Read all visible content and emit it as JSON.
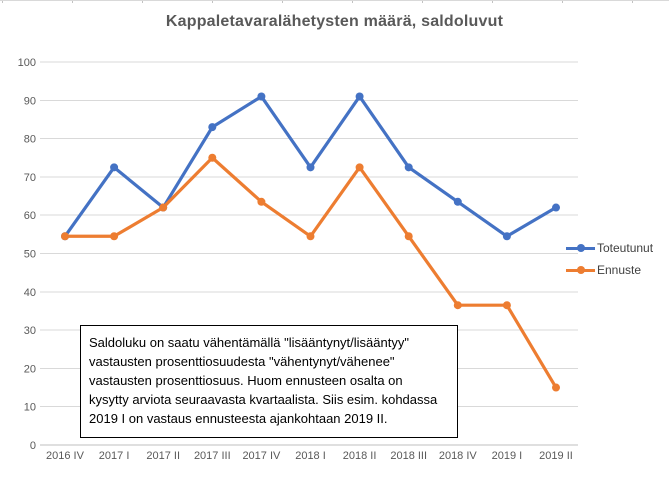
{
  "chart_data": {
    "type": "line",
    "title": "Kappaletavaralähetysten määrä, saldoluvut",
    "categories": [
      "2016 IV",
      "2017 I",
      "2017 II",
      "2017 III",
      "2017 IV",
      "2018 I",
      "2018 II",
      "2018 III",
      "2018 IV",
      "2019 I",
      "2019 II"
    ],
    "series": [
      {
        "name": "Toteutunut",
        "color": "#4472C4",
        "values": [
          54.5,
          72.5,
          62,
          83,
          91,
          72.5,
          91,
          72.5,
          63.5,
          54.5,
          62
        ]
      },
      {
        "name": "Ennuste",
        "color": "#ED7D31",
        "values": [
          54.5,
          54.5,
          62,
          75,
          63.5,
          54.5,
          72.5,
          54.5,
          36.5,
          36.5,
          15
        ]
      }
    ],
    "xlabel": "",
    "ylabel": "",
    "ylim": [
      0,
      100
    ],
    "ytick_step": 10,
    "grid": true,
    "legend_position": "right",
    "marker": "circle",
    "colors": {
      "gridline": "#d9d9d9",
      "axis_line": "#bfbfbf",
      "axis_text": "#595959",
      "title_text": "#595959"
    },
    "annotation": {
      "lines": [
        "Saldoluku on saatu vähentämällä \"lisääntynyt/lisääntyy\"",
        "vastausten prosenttiosuudesta \"vähentynyt/vähenee\"",
        "vastausten prosenttiosuus. Huom ennusteen osalta on",
        "kysytty arviota seuraavasta kvartaalista. Siis esim. kohdassa",
        "2019 I on vastaus ennusteesta ajankohtaan 2019 II."
      ]
    }
  }
}
